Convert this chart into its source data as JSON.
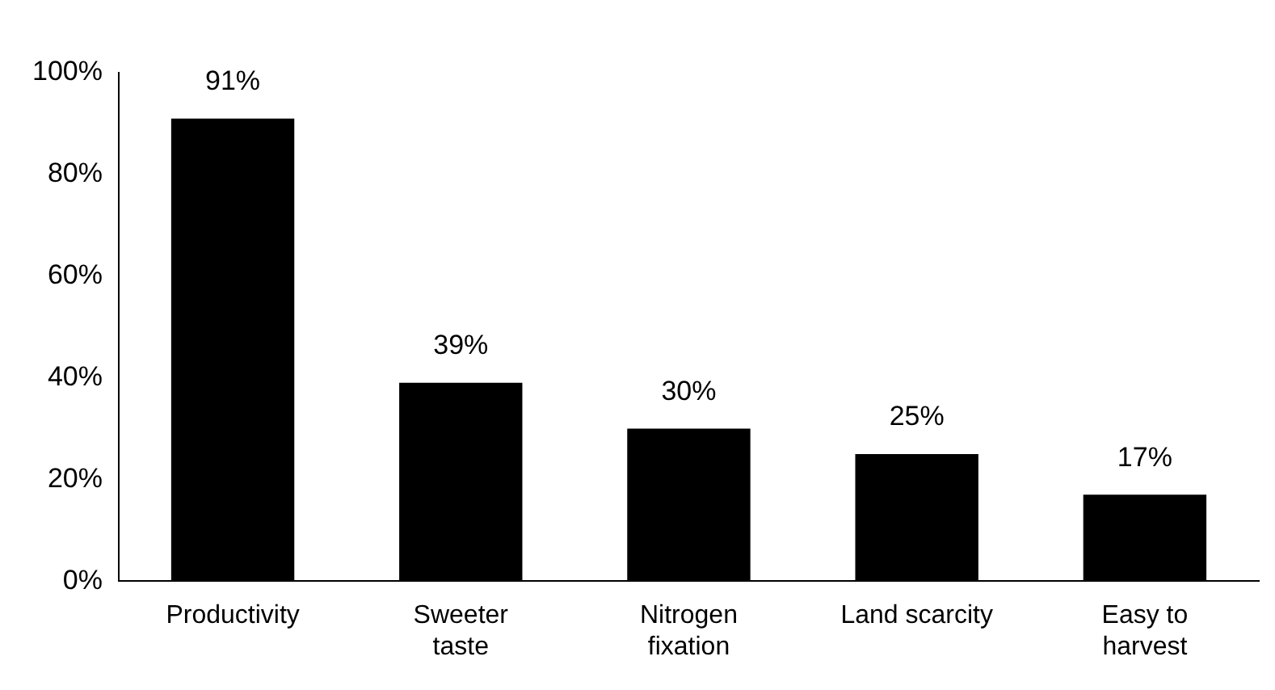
{
  "chart_data": {
    "type": "bar",
    "categories": [
      "Productivity",
      "Sweeter taste",
      "Nitrogen fixation",
      "Land scarcity",
      "Easy to harvest"
    ],
    "values": [
      91,
      39,
      30,
      25,
      17
    ],
    "color": "#000000",
    "ylim": [
      0,
      100
    ],
    "yticks": [
      {
        "value": 0,
        "label": "0%"
      },
      {
        "value": 20,
        "label": "20%"
      },
      {
        "value": 40,
        "label": "40%"
      },
      {
        "value": 60,
        "label": "60%"
      },
      {
        "value": 80,
        "label": "80%"
      },
      {
        "value": 100,
        "label": "100%"
      }
    ],
    "value_labels": [
      "91%",
      "39%",
      "30%",
      "25%",
      "17%"
    ],
    "grid": false,
    "legend": false
  }
}
